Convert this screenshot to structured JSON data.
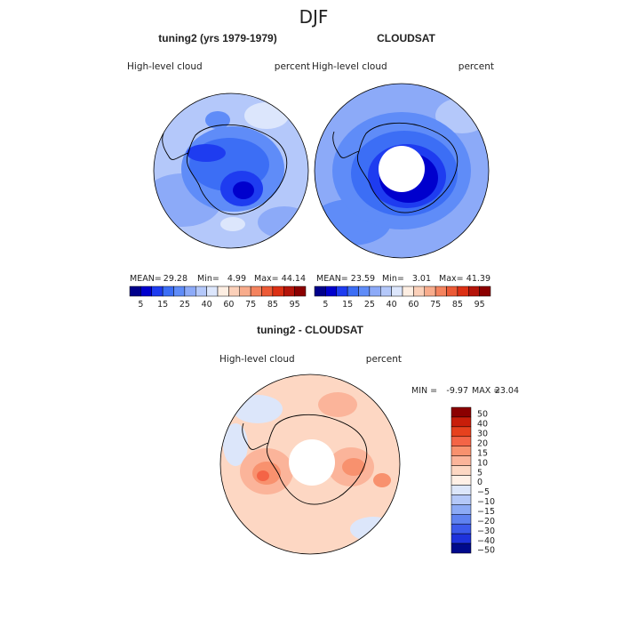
{
  "page_title": "DJF",
  "chart_data": [
    {
      "type": "heatmap",
      "panel": "model",
      "title": "tuning2 (yrs 1979-1979)",
      "left_label": "High-level cloud",
      "right_label": "percent",
      "stats": {
        "mean_label": "MEAN=",
        "mean": "29.28",
        "min_label": "Min=",
        "min": "4.99",
        "max_label": "Max=",
        "max": "44.14"
      },
      "colorbar_ticks": [
        "5",
        "15",
        "25",
        "40",
        "60",
        "75",
        "85",
        "95"
      ]
    },
    {
      "type": "heatmap",
      "panel": "observations",
      "title": "CLOUDSAT",
      "left_label": "High-level cloud",
      "right_label": "percent",
      "stats": {
        "mean_label": "MEAN=",
        "mean": "23.59",
        "min_label": "Min=",
        "min": "3.01",
        "max_label": "Max=",
        "max": "41.39"
      },
      "colorbar_ticks": [
        "5",
        "15",
        "25",
        "40",
        "60",
        "75",
        "85",
        "95"
      ]
    },
    {
      "type": "heatmap",
      "panel": "difference",
      "title": "tuning2 - CLOUDSAT",
      "left_label": "High-level cloud",
      "right_label": "percent",
      "stats": {
        "min_label": "MIN =",
        "min": "-9.97",
        "max_label": "MAX =",
        "max": "23.04"
      },
      "colorbar_ticks": [
        "50",
        "40",
        "30",
        "20",
        "15",
        "10",
        "5",
        "0",
        "−5",
        "−10",
        "−15",
        "−20",
        "−30",
        "−40",
        "−50"
      ]
    }
  ],
  "colors": {
    "abs_scale": [
      "#00008b",
      "#0000cd",
      "#1e3cf0",
      "#3c6ef5",
      "#5f8cf8",
      "#8caaf8",
      "#b4c8fa",
      "#dce6fc",
      "#fdeee2",
      "#fbd0b9",
      "#f8ac8c",
      "#f4835e",
      "#ec5a36",
      "#dc3014",
      "#b4140a",
      "#8b0000"
    ],
    "diff_scale": [
      "#8b0000",
      "#c81e0a",
      "#e6411e",
      "#f46446",
      "#f8916e",
      "#fbb49a",
      "#fdd7c3",
      "#fff0e6",
      "#dce6fa",
      "#b4c8f8",
      "#8caaf5",
      "#5f82f0",
      "#3c5aeb",
      "#1e32dc",
      "#000a8c"
    ],
    "outline": "#000000"
  }
}
